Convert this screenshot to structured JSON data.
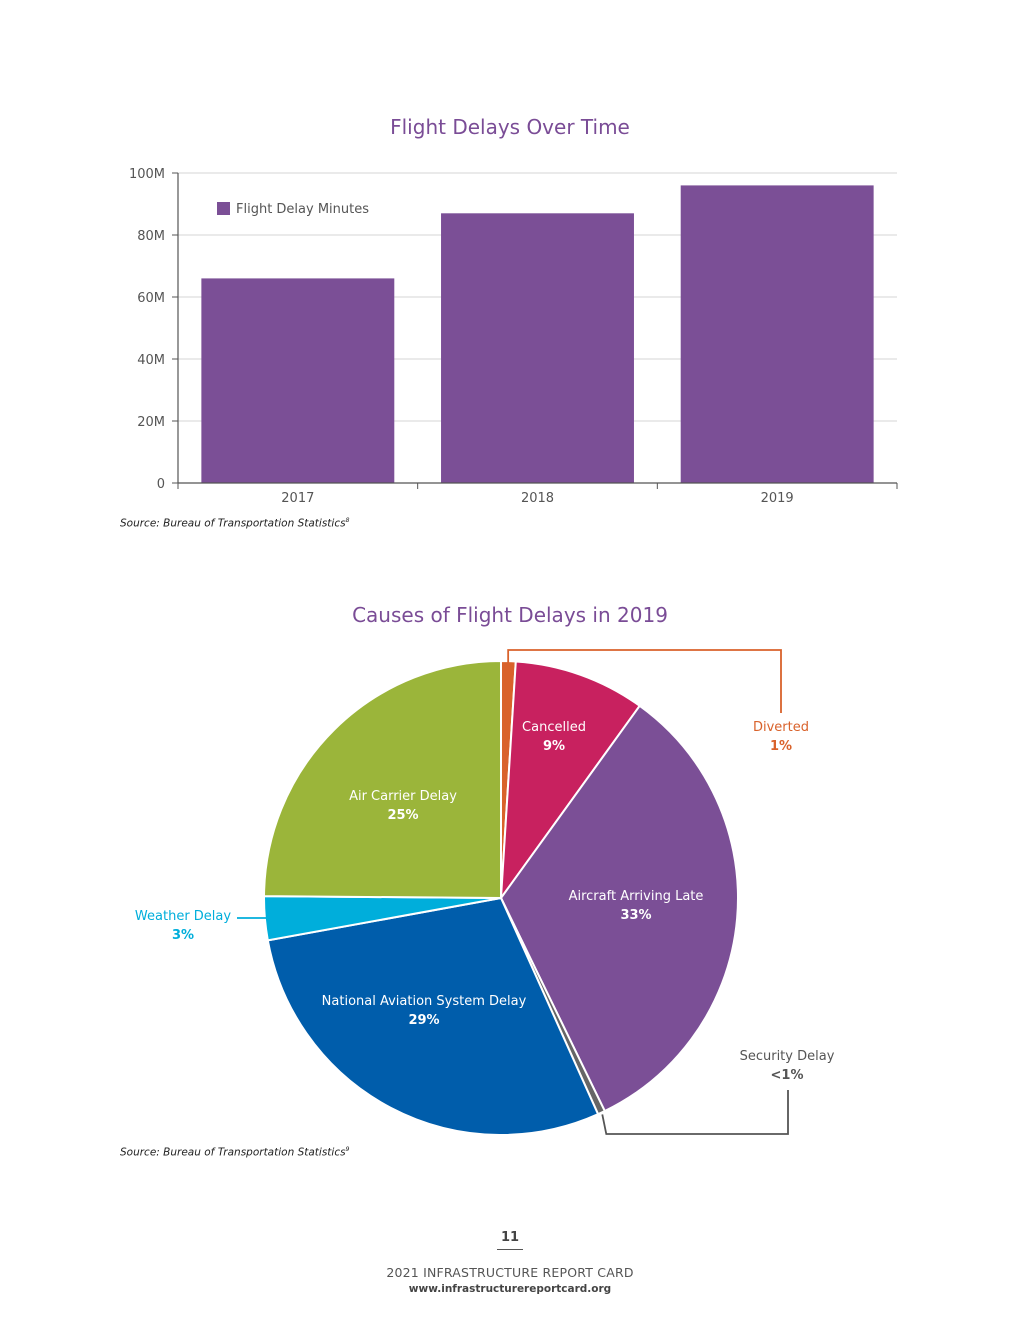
{
  "colors": {
    "title": "#7a4c96",
    "bar": "#7b4f96",
    "air_carrier": "#9bb53a",
    "weather": "#00aedb",
    "nas": "#005dab",
    "security": "#666666",
    "aircraft_late": "#7b4f96",
    "cancelled": "#c8215f",
    "diverted": "#d9622b"
  },
  "bar_section": {
    "title": "Flight Delays Over Time",
    "source_text": "Source: Bureau of Transportation Statistics",
    "source_note": "8"
  },
  "pie_section": {
    "title": "Causes of Flight Delays in 2019",
    "source_text": "Source: Bureau of Transportation Statistics",
    "source_note": "9"
  },
  "chart_data": [
    {
      "type": "bar",
      "title": "Flight Delays Over Time",
      "categories": [
        "2017",
        "2018",
        "2019"
      ],
      "series": [
        {
          "name": "Flight Delay Minutes",
          "values": [
            66,
            87,
            96
          ]
        }
      ],
      "value_unit": "M",
      "ylim": [
        0,
        100
      ],
      "yticks": [
        0,
        20,
        40,
        60,
        80,
        100
      ],
      "ytick_labels": [
        "0",
        "20M",
        "40M",
        "60M",
        "80M",
        "100M"
      ],
      "xlabel": "",
      "ylabel": "",
      "grid": true,
      "legend": "top-left"
    },
    {
      "type": "pie",
      "title": "Causes of Flight Delays in 2019",
      "slices": [
        {
          "key": "diverted",
          "label": "Diverted",
          "value": 1,
          "display": "1%"
        },
        {
          "key": "cancelled",
          "label": "Cancelled",
          "value": 9,
          "display": "9%"
        },
        {
          "key": "aircraft_late",
          "label": "Aircraft Arriving Late",
          "value": 33,
          "display": "33%"
        },
        {
          "key": "security",
          "label": "Security Delay",
          "value": 0.5,
          "display": "<1%"
        },
        {
          "key": "nas",
          "label": "National Aviation System Delay",
          "value": 29,
          "display": "29%"
        },
        {
          "key": "weather",
          "label": "Weather Delay",
          "value": 3,
          "display": "3%"
        },
        {
          "key": "air_carrier",
          "label": "Air Carrier Delay",
          "value": 25,
          "display": "25%"
        }
      ]
    }
  ],
  "footer": {
    "page_number": "11",
    "report_title": "2021 INFRASTRUCTURE REPORT CARD",
    "url": "www.infrastructurereportcard.org"
  }
}
